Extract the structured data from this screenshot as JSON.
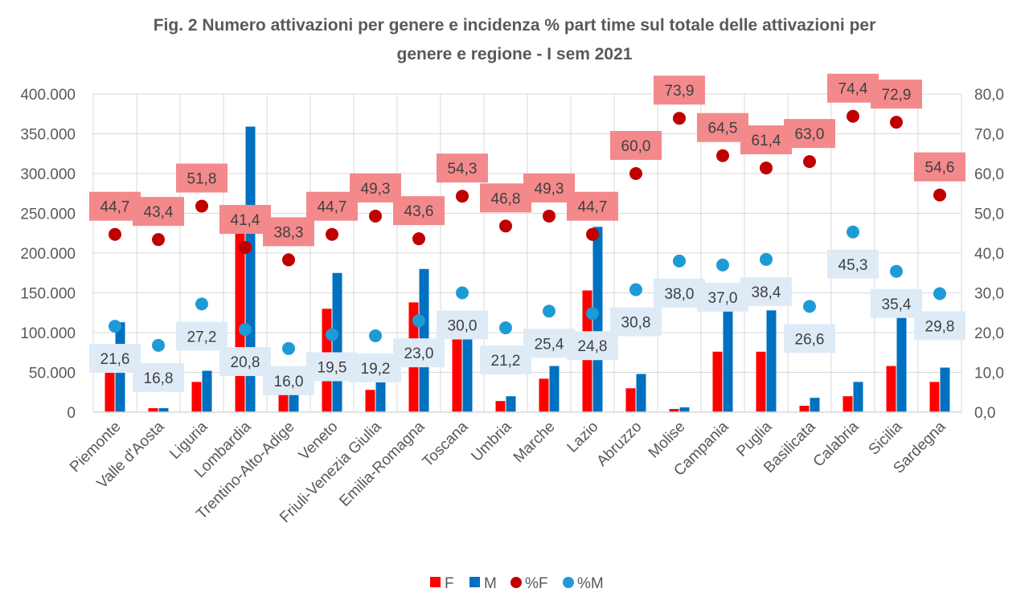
{
  "chart_data": {
    "type": "bar",
    "title_line1": "Fig. 2 Numero attivazioni per genere e incidenza % part time sul totale delle attivazioni per",
    "title_line2": "genere e regione - I sem 2021",
    "categories": [
      "Piemonte",
      "Valle d'Aosta",
      "Liguria",
      "Lombardia",
      "Trentino-Alto-Adige",
      "Veneto",
      "Friuli-Venezia Giulia",
      "Emilia-Romagna",
      "Toscana",
      "Umbria",
      "Marche",
      "Lazio",
      "Abruzzo",
      "Molise",
      "Campania",
      "Puglia",
      "Basilicata",
      "Calabria",
      "Sicilia",
      "Sardegna"
    ],
    "series": [
      {
        "name": "F",
        "kind": "bar",
        "axis": "left",
        "color": "#ff0000",
        "values": [
          55000,
          5000,
          38000,
          230000,
          28000,
          130000,
          28000,
          138000,
          100000,
          14000,
          42000,
          153000,
          30000,
          4000,
          76000,
          76000,
          8000,
          20000,
          58000,
          38000
        ]
      },
      {
        "name": "M",
        "kind": "bar",
        "axis": "left",
        "color": "#0070c0",
        "values": [
          113000,
          5000,
          52000,
          359000,
          28000,
          175000,
          38000,
          180000,
          100000,
          20000,
          58000,
          233000,
          48000,
          6000,
          135000,
          128000,
          18000,
          38000,
          125000,
          56000
        ]
      },
      {
        "name": "%F",
        "kind": "scatter",
        "axis": "right",
        "color": "#c00000",
        "values": [
          44.7,
          43.4,
          51.8,
          41.4,
          38.3,
          44.7,
          49.3,
          43.6,
          54.3,
          46.8,
          49.3,
          44.7,
          60.0,
          73.9,
          64.5,
          61.4,
          63.0,
          74.4,
          72.9,
          54.6
        ],
        "labels": [
          "44,7",
          "43,4",
          "51,8",
          "41,4",
          "38,3",
          "44,7",
          "49,3",
          "43,6",
          "54,3",
          "46,8",
          "49,3",
          "44,7",
          "60,0",
          "73,9",
          "64,5",
          "61,4",
          "63,0",
          "74,4",
          "72,9",
          "54,6"
        ]
      },
      {
        "name": "%M",
        "kind": "scatter",
        "axis": "right",
        "color": "#1e9bd7",
        "values": [
          21.6,
          16.8,
          27.2,
          20.8,
          16.0,
          19.5,
          19.2,
          23.0,
          30.0,
          21.2,
          25.4,
          24.8,
          30.8,
          38.0,
          37.0,
          38.4,
          26.6,
          45.3,
          35.4,
          29.8
        ],
        "labels": [
          "21,6",
          "16,8",
          "27,2",
          "20,8",
          "16,0",
          "19,5",
          "19,2",
          "23,0",
          "30,0",
          "21,2",
          "25,4",
          "24,8",
          "30,8",
          "38,0",
          "37,0",
          "38,4",
          "26,6",
          "45,3",
          "35,4",
          "29,8"
        ]
      }
    ],
    "ylim": [
      0,
      400000
    ],
    "y2lim": [
      0,
      80
    ],
    "yticks": [
      "0",
      "50.000",
      "100.000",
      "150.000",
      "200.000",
      "250.000",
      "300.000",
      "350.000",
      "400.000"
    ],
    "y2ticks": [
      "0,0",
      "10,0",
      "20,0",
      "30,0",
      "40,0",
      "50,0",
      "60,0",
      "70,0",
      "80,0"
    ],
    "grid": true,
    "legend_position": "bottom"
  }
}
